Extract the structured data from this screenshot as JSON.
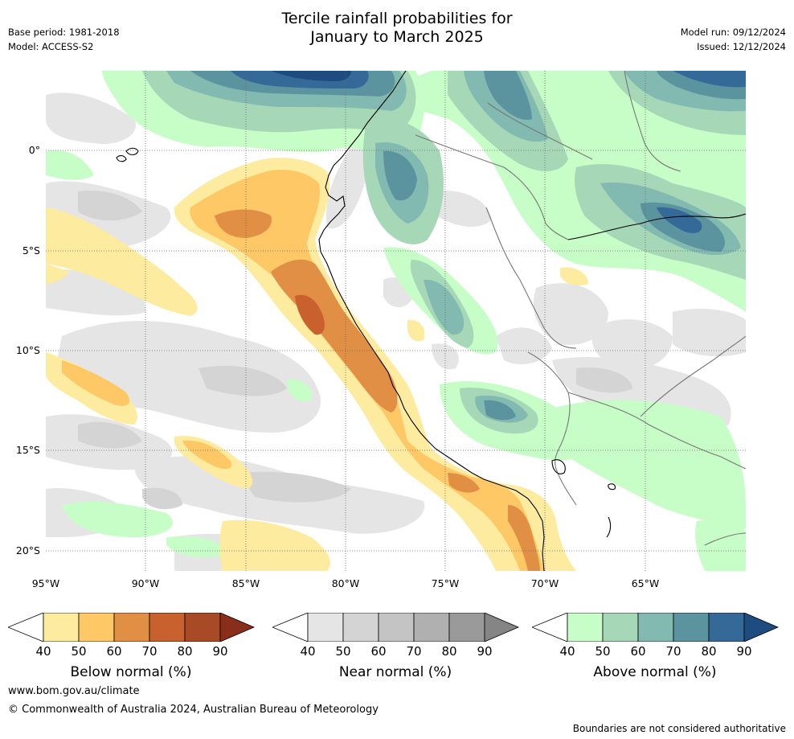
{
  "header": {
    "title_line1": "Tercile rainfall probabilities for",
    "title_line2": "January to March 2025",
    "base_period": "Base period: 1981-2018",
    "model": "Model: ACCESS-S2",
    "model_run": "Model run: 09/12/2024",
    "issued": "Issued: 12/12/2024"
  },
  "map": {
    "region": "South America - Peru and surroundings",
    "lon_range": [
      -95,
      -60.2
    ],
    "lat_range": [
      -21,
      4
    ],
    "lat_ticks": [
      "0°",
      "5°S",
      "10°S",
      "15°S",
      "20°S"
    ],
    "lon_ticks": [
      "95°W",
      "90°W",
      "85°W",
      "80°W",
      "75°W",
      "70°W",
      "65°W"
    ],
    "colors": {
      "below": [
        "#fdeba0",
        "#fdc865",
        "#e08f45",
        "#c9612e",
        "#a84a26",
        "#8a2e1c"
      ],
      "near": [
        "#e5e5e5",
        "#d4d4d4",
        "#c4c4c4",
        "#b0b0b0",
        "#9a9a9a",
        "#858585"
      ],
      "above": [
        "#c7fdc7",
        "#a6d8b8",
        "#82b9b0",
        "#5b949f",
        "#356a98",
        "#1e4c80"
      ]
    }
  },
  "colorbars": [
    {
      "name": "below-normal",
      "title": "Below normal (%)",
      "ticks": [
        "40",
        "50",
        "60",
        "70",
        "80",
        "90"
      ]
    },
    {
      "name": "near-normal",
      "title": "Near normal (%)",
      "ticks": [
        "40",
        "50",
        "60",
        "70",
        "80",
        "90"
      ]
    },
    {
      "name": "above-normal",
      "title": "Above normal (%)",
      "ticks": [
        "40",
        "50",
        "60",
        "70",
        "80",
        "90"
      ]
    }
  ],
  "footer": {
    "website": "www.bom.gov.au/climate",
    "copyright": "© Commonwealth of Australia 2024, Australian Bureau of Meteorology",
    "disclaimer": "Boundaries are not considered authoritative"
  }
}
